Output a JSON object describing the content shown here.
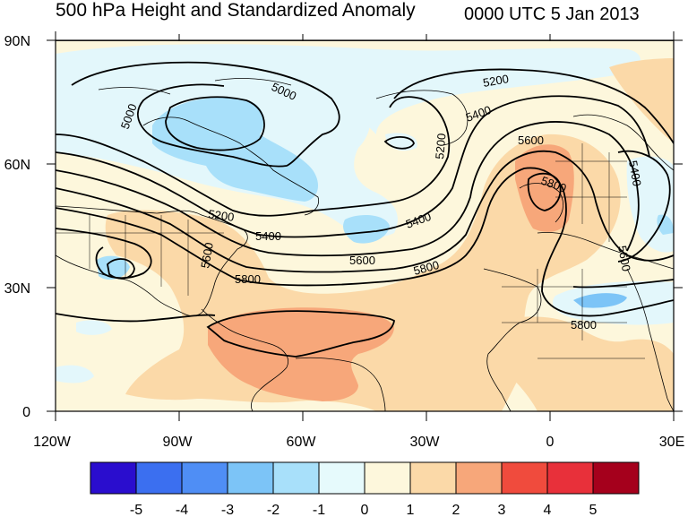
{
  "title": "500 hPa Height and Standardized Anomaly",
  "timestamp": "0000 UTC 5 Jan 2013",
  "lat_labels": [
    "90N",
    "60N",
    "30N",
    "0"
  ],
  "lon_labels": [
    "120W",
    "90W",
    "60W",
    "30W",
    "0",
    "30E"
  ],
  "contour_labels": {
    "c5000": "5000",
    "c5000b": "5000",
    "c5200a": "5200",
    "c5200b": "5200",
    "c5200c": "5200",
    "c5400a": "5400",
    "c5400b": "5400",
    "c5400c": "5400",
    "c5600a": "5600",
    "c5600b": "5600",
    "c5600c": "5600",
    "c5600d": "5600",
    "c5800a": "5800",
    "c5800b": "5800",
    "c5800c": "5800",
    "c5800d": "5800",
    "c5400d": "5400"
  },
  "colorbar": {
    "labels": [
      "-5",
      "-4",
      "-3",
      "-2",
      "-1",
      "0",
      "1",
      "2",
      "3",
      "4",
      "5"
    ],
    "colors": [
      "#2a0dce",
      "#3b6ff0",
      "#4f8ef5",
      "#7cc4f7",
      "#a8e0fa",
      "#e6fafc",
      "#fdf7dc",
      "#fbd9a8",
      "#f7a77a",
      "#f04b3d",
      "#e8303a",
      "#a5001c"
    ]
  },
  "map_colors": {
    "ocean_bg": "#fdf7dc",
    "neg1": "#e3f7fb",
    "neg2": "#a8e0fa",
    "neg3": "#7cc4f7",
    "pos1": "#fbd9a8",
    "pos2": "#f7a77a"
  }
}
